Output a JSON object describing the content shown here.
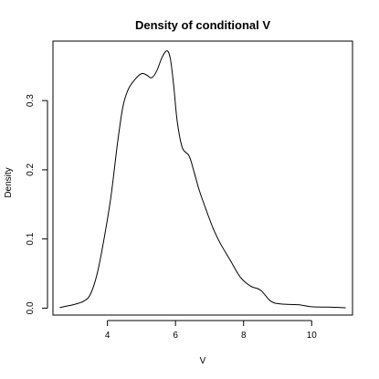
{
  "chart_data": {
    "type": "line",
    "title": "Density of conditional V",
    "xlabel": "V",
    "ylabel": "Density",
    "xlim": [
      2.4,
      11.2
    ],
    "ylim": [
      -0.01,
      0.386
    ],
    "x_ticks": [
      4,
      6,
      8,
      10
    ],
    "x_tick_labels": [
      "4",
      "6",
      "8",
      "10"
    ],
    "y_ticks": [
      0.0,
      0.1,
      0.2,
      0.3
    ],
    "y_tick_labels": [
      "0.0",
      "0.1",
      "0.2",
      "0.3"
    ],
    "grid": false,
    "series": [
      {
        "x": [
          2.6,
          3.0,
          3.3,
          3.5,
          3.7,
          3.9,
          4.1,
          4.3,
          4.45,
          4.6,
          4.8,
          5.0,
          5.15,
          5.3,
          5.45,
          5.6,
          5.75,
          5.85,
          5.95,
          6.05,
          6.2,
          6.4,
          6.55,
          6.7,
          6.9,
          7.1,
          7.3,
          7.6,
          7.9,
          8.2,
          8.5,
          8.8,
          9.1,
          9.6,
          10.0,
          10.5,
          11.0
        ],
        "y": [
          0.001,
          0.005,
          0.01,
          0.02,
          0.05,
          0.1,
          0.16,
          0.24,
          0.29,
          0.315,
          0.33,
          0.339,
          0.337,
          0.333,
          0.343,
          0.362,
          0.372,
          0.36,
          0.32,
          0.27,
          0.232,
          0.22,
          0.196,
          0.17,
          0.142,
          0.116,
          0.095,
          0.07,
          0.045,
          0.032,
          0.026,
          0.01,
          0.006,
          0.005,
          0.002,
          0.0015,
          0.0005
        ]
      }
    ]
  }
}
